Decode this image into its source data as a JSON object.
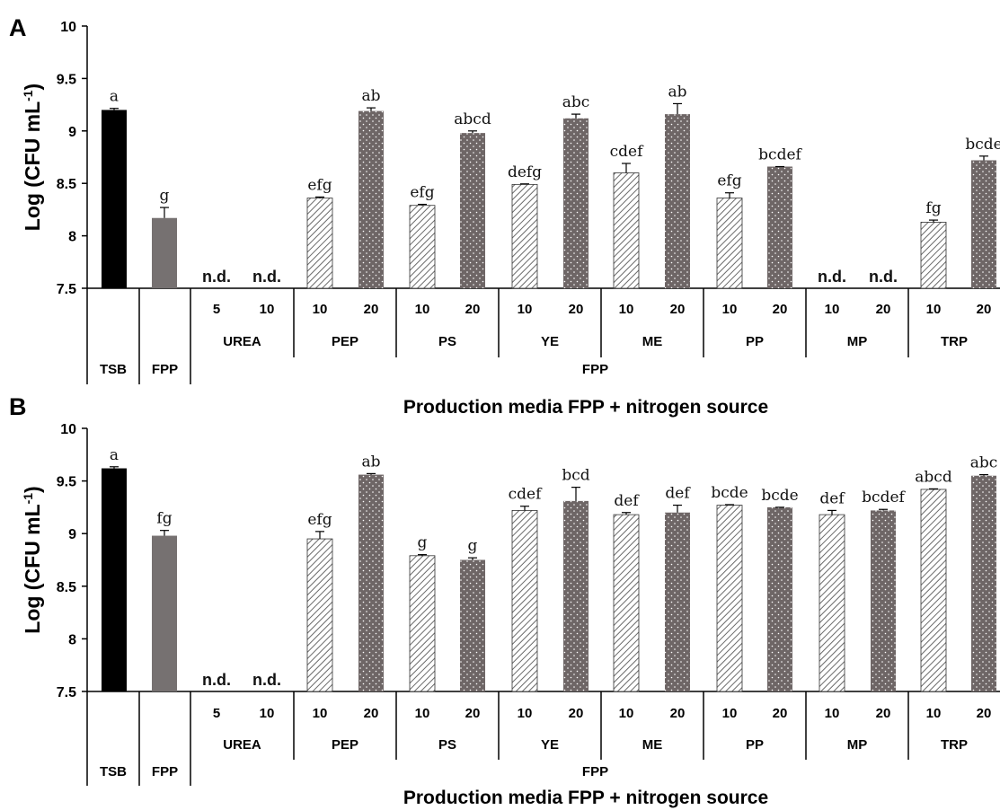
{
  "chart_data": [
    {
      "panel": "A",
      "type": "bar",
      "ylabel": "Log (CFU mL-1)",
      "ylim": [
        7.5,
        10
      ],
      "yticks": [
        "7.5",
        "8",
        "8.5",
        "9",
        "9.5",
        "10"
      ],
      "xlabel": "Production media FPP + nitrogen source",
      "nd_label": "n.d.",
      "bars": [
        {
          "group": "TSB",
          "dose": "",
          "value": 9.2,
          "error": 0.015,
          "sig": "a",
          "style": "black"
        },
        {
          "group": "FPP",
          "dose": "",
          "value": 8.17,
          "error": 0.1,
          "sig": "g",
          "style": "gray"
        },
        {
          "group": "UREA",
          "dose": "5",
          "value": null,
          "sig": "n.d.",
          "style": "hatch"
        },
        {
          "group": "UREA",
          "dose": "10",
          "value": null,
          "sig": "n.d.",
          "style": "dots"
        },
        {
          "group": "PEP",
          "dose": "10",
          "value": 8.36,
          "error": 0.01,
          "sig": "efg",
          "style": "hatch"
        },
        {
          "group": "PEP",
          "dose": "20",
          "value": 9.19,
          "error": 0.03,
          "sig": "ab",
          "style": "dots"
        },
        {
          "group": "PS",
          "dose": "10",
          "value": 8.29,
          "error": 0.01,
          "sig": "efg",
          "style": "hatch"
        },
        {
          "group": "PS",
          "dose": "20",
          "value": 8.98,
          "error": 0.02,
          "sig": "abcd",
          "style": "dots"
        },
        {
          "group": "YE",
          "dose": "10",
          "value": 8.49,
          "error": 0.005,
          "sig": "defg",
          "style": "hatch"
        },
        {
          "group": "YE",
          "dose": "20",
          "value": 9.12,
          "error": 0.04,
          "sig": "abc",
          "style": "dots"
        },
        {
          "group": "ME",
          "dose": "10",
          "value": 8.6,
          "error": 0.09,
          "sig": "cdef",
          "style": "hatch"
        },
        {
          "group": "ME",
          "dose": "20",
          "value": 9.16,
          "error": 0.1,
          "sig": "ab",
          "style": "dots"
        },
        {
          "group": "PP",
          "dose": "10",
          "value": 8.36,
          "error": 0.05,
          "sig": "efg",
          "style": "hatch"
        },
        {
          "group": "PP",
          "dose": "20",
          "value": 8.66,
          "error": 0.0,
          "sig": "bcdef",
          "style": "dots"
        },
        {
          "group": "MP",
          "dose": "10",
          "value": null,
          "sig": "n.d.",
          "style": "hatch"
        },
        {
          "group": "MP",
          "dose": "20",
          "value": null,
          "sig": "n.d.",
          "style": "dots"
        },
        {
          "group": "TRP",
          "dose": "10",
          "value": 8.13,
          "error": 0.02,
          "sig": "fg",
          "style": "hatch"
        },
        {
          "group": "TRP",
          "dose": "20",
          "value": 8.72,
          "error": 0.04,
          "sig": "bcde",
          "style": "dots"
        }
      ],
      "groups": [
        "TSB",
        "FPP",
        "UREA",
        "PEP",
        "PS",
        "YE",
        "ME",
        "PP",
        "MP",
        "TRP"
      ],
      "group_header": "FPP"
    },
    {
      "panel": "B",
      "type": "bar",
      "ylabel": "Log (CFU mL-1)",
      "ylim": [
        7.5,
        10
      ],
      "yticks": [
        "7.5",
        "8",
        "8.5",
        "9",
        "9.5",
        "10"
      ],
      "xlabel": "Production media FPP + nitrogen source",
      "nd_label": "n.d.",
      "bars": [
        {
          "group": "TSB",
          "dose": "",
          "value": 9.62,
          "error": 0.015,
          "sig": "a",
          "style": "black"
        },
        {
          "group": "FPP",
          "dose": "",
          "value": 8.98,
          "error": 0.05,
          "sig": "fg",
          "style": "gray"
        },
        {
          "group": "UREA",
          "dose": "5",
          "value": null,
          "sig": "n.d.",
          "style": "hatch"
        },
        {
          "group": "UREA",
          "dose": "10",
          "value": null,
          "sig": "n.d.",
          "style": "dots"
        },
        {
          "group": "PEP",
          "dose": "10",
          "value": 8.95,
          "error": 0.07,
          "sig": "efg",
          "style": "hatch"
        },
        {
          "group": "PEP",
          "dose": "20",
          "value": 9.56,
          "error": 0.01,
          "sig": "ab",
          "style": "dots"
        },
        {
          "group": "PS",
          "dose": "10",
          "value": 8.79,
          "error": 0.01,
          "sig": "g",
          "style": "hatch"
        },
        {
          "group": "PS",
          "dose": "20",
          "value": 8.75,
          "error": 0.02,
          "sig": "g",
          "style": "dots"
        },
        {
          "group": "YE",
          "dose": "10",
          "value": 9.22,
          "error": 0.04,
          "sig": "cdef",
          "style": "hatch"
        },
        {
          "group": "YE",
          "dose": "20",
          "value": 9.31,
          "error": 0.13,
          "sig": "bcd",
          "style": "dots"
        },
        {
          "group": "ME",
          "dose": "10",
          "value": 9.18,
          "error": 0.02,
          "sig": "def",
          "style": "hatch"
        },
        {
          "group": "ME",
          "dose": "20",
          "value": 9.2,
          "error": 0.07,
          "sig": "def",
          "style": "dots"
        },
        {
          "group": "PP",
          "dose": "10",
          "value": 9.27,
          "error": 0.005,
          "sig": "bcde",
          "style": "hatch"
        },
        {
          "group": "PP",
          "dose": "20",
          "value": 9.25,
          "error": 0.0,
          "sig": "bcde",
          "style": "dots"
        },
        {
          "group": "MP",
          "dose": "10",
          "value": 9.18,
          "error": 0.04,
          "sig": "def",
          "style": "hatch"
        },
        {
          "group": "MP",
          "dose": "20",
          "value": 9.22,
          "error": 0.01,
          "sig": "bcdef",
          "style": "dots"
        },
        {
          "group": "TRP",
          "dose": "10",
          "value": 9.42,
          "error": 0.005,
          "sig": "abcd",
          "style": "hatch"
        },
        {
          "group": "TRP",
          "dose": "20",
          "value": 9.55,
          "error": 0.01,
          "sig": "abc",
          "style": "dots"
        }
      ],
      "groups": [
        "TSB",
        "FPP",
        "UREA",
        "PEP",
        "PS",
        "YE",
        "ME",
        "PP",
        "MP",
        "TRP"
      ],
      "group_header": "FPP"
    }
  ],
  "colors": {
    "black_bar": "#000000",
    "gray_bar": "#767171",
    "dots_bar": "#6e6666",
    "hatch_stroke": "#6a6a6a",
    "axis": "#000000"
  }
}
